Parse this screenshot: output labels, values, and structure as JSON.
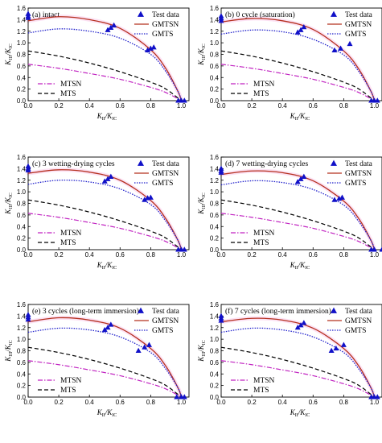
{
  "colors": {
    "test": "#1010c8",
    "gmtsn": "#b5301f",
    "gmts": "#2222cc",
    "mtsn": "#c020c0",
    "mts": "#000000",
    "highlight": "#fbd5f0"
  },
  "chart_data": [
    {
      "type": "scatter",
      "title": "(a) intact",
      "xlabel": "K_II/K_IC",
      "ylabel": "K_III/K_IC",
      "xlim": [
        0,
        1.05
      ],
      "ylim": [
        0,
        1.6
      ],
      "xticks": [
        0.0,
        0.2,
        0.4,
        0.6,
        0.8,
        1.0
      ],
      "yticks": [
        0.0,
        0.2,
        0.4,
        0.6,
        0.8,
        1.0,
        1.2,
        1.4,
        1.6
      ],
      "legend_top": [
        "Test data",
        "GMTSN",
        "GMTS"
      ],
      "legend_bottom": [
        "MTSN",
        "MTS"
      ],
      "test_points": [
        [
          0.0,
          1.5
        ],
        [
          0.0,
          1.46
        ],
        [
          0.0,
          1.43
        ],
        [
          0.52,
          1.22
        ],
        [
          0.54,
          1.26
        ],
        [
          0.56,
          1.3
        ],
        [
          0.78,
          0.87
        ],
        [
          0.8,
          0.9
        ],
        [
          0.82,
          0.92
        ],
        [
          0.98,
          0.0
        ],
        [
          1.0,
          0.0
        ],
        [
          1.02,
          0.0
        ]
      ],
      "series": [
        {
          "name": "GMTSN",
          "x": [
            0.0,
            0.2,
            0.4,
            0.6,
            0.8,
            0.9,
            0.98,
            1.0
          ],
          "y": [
            1.38,
            1.45,
            1.4,
            1.25,
            0.88,
            0.55,
            0.15,
            0.0
          ]
        },
        {
          "name": "GMTS",
          "x": [
            0.0,
            0.2,
            0.4,
            0.6,
            0.8,
            0.9,
            0.98,
            1.0
          ],
          "y": [
            1.17,
            1.24,
            1.2,
            1.08,
            0.8,
            0.5,
            0.15,
            0.0
          ]
        },
        {
          "name": "MTSN",
          "x": [
            0.0,
            0.2,
            0.4,
            0.6,
            0.8,
            0.9,
            1.0
          ],
          "y": [
            0.63,
            0.56,
            0.47,
            0.37,
            0.23,
            0.14,
            0.0
          ]
        },
        {
          "name": "MTS",
          "x": [
            0.0,
            0.2,
            0.4,
            0.6,
            0.8,
            0.9,
            1.0
          ],
          "y": [
            0.86,
            0.77,
            0.65,
            0.5,
            0.32,
            0.2,
            0.0
          ]
        }
      ]
    },
    {
      "type": "scatter",
      "title": "(b) 0 cycle (saturation)",
      "xlabel": "K_II/K_IC",
      "ylabel": "K_III/K_IC",
      "xlim": [
        0,
        1.05
      ],
      "ylim": [
        0,
        1.6
      ],
      "xticks": [
        0.0,
        0.2,
        0.4,
        0.6,
        0.8,
        1.0
      ],
      "yticks": [
        0.0,
        0.2,
        0.4,
        0.6,
        0.8,
        1.0,
        1.2,
        1.4,
        1.6
      ],
      "legend_top": [
        "Test data",
        "GMTSN",
        "GMTS"
      ],
      "legend_bottom": [
        "MTSN",
        "MTS"
      ],
      "test_points": [
        [
          0.0,
          1.42
        ],
        [
          0.0,
          1.46
        ],
        [
          0.0,
          1.38
        ],
        [
          0.5,
          1.18
        ],
        [
          0.52,
          1.22
        ],
        [
          0.54,
          1.27
        ],
        [
          0.74,
          0.87
        ],
        [
          0.78,
          0.9
        ],
        [
          0.84,
          0.98
        ],
        [
          0.98,
          0.0
        ],
        [
          1.0,
          0.0
        ],
        [
          1.02,
          0.0
        ]
      ],
      "series": [
        {
          "name": "GMTSN",
          "x": [
            0.0,
            0.2,
            0.4,
            0.6,
            0.8,
            0.9,
            0.98,
            1.0
          ],
          "y": [
            1.36,
            1.42,
            1.38,
            1.23,
            0.86,
            0.54,
            0.15,
            0.0
          ]
        },
        {
          "name": "GMTS",
          "x": [
            0.0,
            0.2,
            0.4,
            0.6,
            0.8,
            0.9,
            0.98,
            1.0
          ],
          "y": [
            1.15,
            1.22,
            1.19,
            1.06,
            0.79,
            0.5,
            0.15,
            0.0
          ]
        },
        {
          "name": "MTSN",
          "x": [
            0.0,
            0.2,
            0.4,
            0.6,
            0.8,
            0.9,
            1.0
          ],
          "y": [
            0.63,
            0.56,
            0.47,
            0.37,
            0.23,
            0.14,
            0.0
          ]
        },
        {
          "name": "MTS",
          "x": [
            0.0,
            0.2,
            0.4,
            0.6,
            0.8,
            0.9,
            1.0
          ],
          "y": [
            0.86,
            0.77,
            0.65,
            0.5,
            0.32,
            0.2,
            0.0
          ]
        }
      ]
    },
    {
      "type": "scatter",
      "title": "(c) 3 wetting-drying cycles",
      "xlabel": "K_II/K_IC",
      "ylabel": "K_III/K_IC",
      "xlim": [
        0,
        1.05
      ],
      "ylim": [
        0,
        1.6
      ],
      "xticks": [
        0.0,
        0.2,
        0.4,
        0.6,
        0.8,
        1.0
      ],
      "yticks": [
        0.0,
        0.2,
        0.4,
        0.6,
        0.8,
        1.0,
        1.2,
        1.4,
        1.6
      ],
      "legend_top": [
        "Test data",
        "GMTSN",
        "GMTS"
      ],
      "legend_bottom": [
        "MTSN",
        "MTS"
      ],
      "test_points": [
        [
          0.0,
          1.44
        ],
        [
          0.0,
          1.4
        ],
        [
          0.0,
          1.37
        ],
        [
          0.5,
          1.18
        ],
        [
          0.52,
          1.22
        ],
        [
          0.54,
          1.26
        ],
        [
          0.76,
          0.86
        ],
        [
          0.78,
          0.89
        ],
        [
          0.8,
          0.9
        ],
        [
          0.98,
          0.0
        ],
        [
          1.0,
          0.0
        ],
        [
          1.02,
          0.0
        ]
      ],
      "series": [
        {
          "name": "GMTSN",
          "x": [
            0.0,
            0.2,
            0.4,
            0.6,
            0.8,
            0.9,
            0.98,
            1.0
          ],
          "y": [
            1.32,
            1.38,
            1.34,
            1.2,
            0.85,
            0.53,
            0.15,
            0.0
          ]
        },
        {
          "name": "GMTS",
          "x": [
            0.0,
            0.2,
            0.4,
            0.6,
            0.8,
            0.9,
            0.98,
            1.0
          ],
          "y": [
            1.13,
            1.2,
            1.17,
            1.05,
            0.78,
            0.49,
            0.15,
            0.0
          ]
        },
        {
          "name": "MTSN",
          "x": [
            0.0,
            0.2,
            0.4,
            0.6,
            0.8,
            0.9,
            1.0
          ],
          "y": [
            0.63,
            0.56,
            0.47,
            0.37,
            0.23,
            0.14,
            0.0
          ]
        },
        {
          "name": "MTS",
          "x": [
            0.0,
            0.2,
            0.4,
            0.6,
            0.8,
            0.9,
            1.0
          ],
          "y": [
            0.86,
            0.77,
            0.65,
            0.5,
            0.32,
            0.2,
            0.0
          ]
        }
      ]
    },
    {
      "type": "scatter",
      "title": "(d) 7 wetting-drying cycles",
      "xlabel": "K_II/K_IC",
      "ylabel": "K_III/K_IC",
      "xlim": [
        0,
        1.05
      ],
      "ylim": [
        0,
        1.6
      ],
      "xticks": [
        0.0,
        0.2,
        0.4,
        0.6,
        0.8,
        1.0
      ],
      "yticks": [
        0.0,
        0.2,
        0.4,
        0.6,
        0.8,
        1.0,
        1.2,
        1.4,
        1.6
      ],
      "legend_top": [
        "Test data",
        "GMTSN",
        "GMTS"
      ],
      "legend_bottom": [
        "MTSN",
        "MTS"
      ],
      "test_points": [
        [
          0.0,
          1.4
        ],
        [
          0.0,
          1.36
        ],
        [
          0.0,
          1.33
        ],
        [
          0.5,
          1.17
        ],
        [
          0.52,
          1.22
        ],
        [
          0.54,
          1.26
        ],
        [
          0.74,
          0.86
        ],
        [
          0.77,
          0.88
        ],
        [
          0.79,
          0.9
        ],
        [
          0.98,
          0.0
        ],
        [
          1.0,
          0.0
        ],
        [
          1.05,
          0.0
        ]
      ],
      "series": [
        {
          "name": "GMTSN",
          "x": [
            0.0,
            0.2,
            0.4,
            0.6,
            0.8,
            0.9,
            0.98,
            1.0
          ],
          "y": [
            1.3,
            1.36,
            1.33,
            1.19,
            0.84,
            0.53,
            0.15,
            0.0
          ]
        },
        {
          "name": "GMTS",
          "x": [
            0.0,
            0.2,
            0.4,
            0.6,
            0.8,
            0.9,
            0.98,
            1.0
          ],
          "y": [
            1.12,
            1.19,
            1.16,
            1.04,
            0.77,
            0.48,
            0.15,
            0.0
          ]
        },
        {
          "name": "MTSN",
          "x": [
            0.0,
            0.2,
            0.4,
            0.6,
            0.8,
            0.9,
            1.0
          ],
          "y": [
            0.63,
            0.56,
            0.47,
            0.37,
            0.23,
            0.14,
            0.0
          ]
        },
        {
          "name": "MTS",
          "x": [
            0.0,
            0.2,
            0.4,
            0.6,
            0.8,
            0.9,
            1.0
          ],
          "y": [
            0.86,
            0.77,
            0.65,
            0.5,
            0.32,
            0.2,
            0.0
          ]
        }
      ]
    },
    {
      "type": "scatter",
      "title": "(e) 3 cycles (long-term immersion)",
      "xlabel": "K_II/K_IC",
      "ylabel": "K_III/K_IC",
      "xlim": [
        0,
        1.05
      ],
      "ylim": [
        0,
        1.6
      ],
      "xticks": [
        0.0,
        0.2,
        0.4,
        0.6,
        0.8,
        1.0
      ],
      "yticks": [
        0.0,
        0.2,
        0.4,
        0.6,
        0.8,
        1.0,
        1.2,
        1.4,
        1.6
      ],
      "legend_top": [
        "Test data",
        "GMTSN",
        "GMTS"
      ],
      "legend_bottom": [
        "MTSN",
        "MTS"
      ],
      "test_points": [
        [
          0.0,
          1.42
        ],
        [
          0.0,
          1.38
        ],
        [
          0.0,
          1.34
        ],
        [
          0.5,
          1.16
        ],
        [
          0.52,
          1.2
        ],
        [
          0.54,
          1.25
        ],
        [
          0.72,
          0.8
        ],
        [
          0.76,
          0.86
        ],
        [
          0.79,
          0.9
        ],
        [
          0.97,
          0.0
        ],
        [
          1.0,
          0.0
        ],
        [
          1.02,
          0.0
        ]
      ],
      "series": [
        {
          "name": "GMTSN",
          "x": [
            0.0,
            0.2,
            0.4,
            0.6,
            0.8,
            0.9,
            0.98,
            1.0
          ],
          "y": [
            1.3,
            1.37,
            1.33,
            1.19,
            0.84,
            0.53,
            0.15,
            0.0
          ]
        },
        {
          "name": "GMTS",
          "x": [
            0.0,
            0.2,
            0.4,
            0.6,
            0.8,
            0.9,
            0.98,
            1.0
          ],
          "y": [
            1.12,
            1.19,
            1.16,
            1.04,
            0.77,
            0.48,
            0.15,
            0.0
          ]
        },
        {
          "name": "MTSN",
          "x": [
            0.0,
            0.2,
            0.4,
            0.6,
            0.8,
            0.9,
            1.0
          ],
          "y": [
            0.63,
            0.56,
            0.47,
            0.37,
            0.23,
            0.14,
            0.0
          ]
        },
        {
          "name": "MTS",
          "x": [
            0.0,
            0.2,
            0.4,
            0.6,
            0.8,
            0.9,
            1.0
          ],
          "y": [
            0.86,
            0.77,
            0.65,
            0.5,
            0.32,
            0.2,
            0.0
          ]
        }
      ]
    },
    {
      "type": "scatter",
      "title": "(f) 7 cycles (long-term immersion)",
      "xlabel": "K_II/K_IC",
      "ylabel": "K_III/K_IC",
      "xlim": [
        0,
        1.05
      ],
      "ylim": [
        0,
        1.6
      ],
      "xticks": [
        0.0,
        0.2,
        0.4,
        0.6,
        0.8,
        1.0
      ],
      "yticks": [
        0.0,
        0.2,
        0.4,
        0.6,
        0.8,
        1.0,
        1.2,
        1.4,
        1.6
      ],
      "legend_top": [
        "Test data",
        "GMTSN",
        "GMTS"
      ],
      "legend_bottom": [
        "MTSN",
        "MTS"
      ],
      "test_points": [
        [
          0.0,
          1.4
        ],
        [
          0.0,
          1.36
        ],
        [
          0.0,
          1.32
        ],
        [
          0.5,
          1.2
        ],
        [
          0.52,
          1.24
        ],
        [
          0.54,
          1.28
        ],
        [
          0.72,
          0.8
        ],
        [
          0.75,
          0.84
        ],
        [
          0.8,
          0.9
        ],
        [
          0.98,
          0.0
        ],
        [
          1.0,
          0.0
        ],
        [
          1.02,
          0.0
        ]
      ],
      "series": [
        {
          "name": "GMTSN",
          "x": [
            0.0,
            0.2,
            0.4,
            0.6,
            0.8,
            0.9,
            0.98,
            1.0
          ],
          "y": [
            1.3,
            1.36,
            1.33,
            1.19,
            0.84,
            0.53,
            0.15,
            0.0
          ]
        },
        {
          "name": "GMTS",
          "x": [
            0.0,
            0.2,
            0.4,
            0.6,
            0.8,
            0.9,
            0.98,
            1.0
          ],
          "y": [
            1.12,
            1.19,
            1.16,
            1.04,
            0.77,
            0.48,
            0.15,
            0.0
          ]
        },
        {
          "name": "MTSN",
          "x": [
            0.0,
            0.2,
            0.4,
            0.6,
            0.8,
            0.9,
            1.0
          ],
          "y": [
            0.63,
            0.56,
            0.47,
            0.37,
            0.23,
            0.14,
            0.0
          ]
        },
        {
          "name": "MTS",
          "x": [
            0.0,
            0.2,
            0.4,
            0.6,
            0.8,
            0.9,
            1.0
          ],
          "y": [
            0.86,
            0.77,
            0.65,
            0.5,
            0.32,
            0.2,
            0.0
          ]
        }
      ]
    }
  ]
}
